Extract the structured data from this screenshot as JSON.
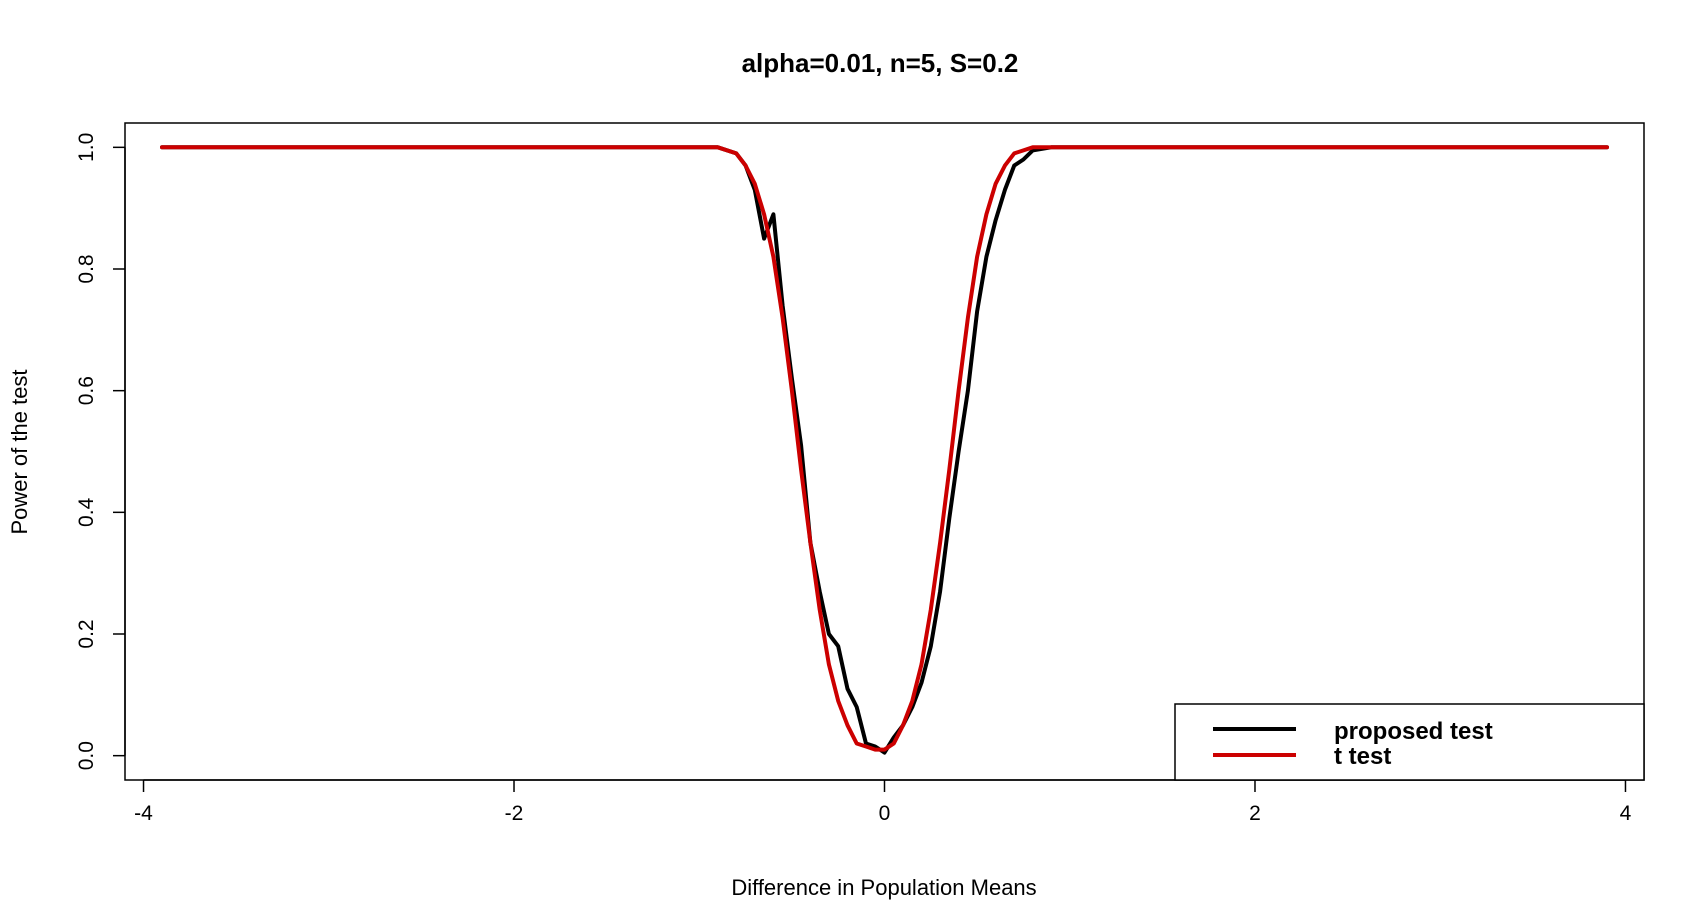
{
  "chart_data": {
    "type": "line",
    "title": "alpha=0.01, n=5, S=0.2",
    "xlabel": "Difference in Population Means",
    "ylabel": "Power of the test",
    "xlim": [
      -4.1,
      4.1
    ],
    "ylim": [
      -0.04,
      1.04
    ],
    "xticks": [
      -4,
      -2,
      0,
      2,
      4
    ],
    "xtick_labels": [
      "-4",
      "-2",
      "0",
      "2",
      "4"
    ],
    "yticks": [
      0.0,
      0.2,
      0.4,
      0.6,
      0.8,
      1.0
    ],
    "ytick_labels": [
      "0.0",
      "0.2",
      "0.4",
      "0.6",
      "0.8",
      "1.0"
    ],
    "grid": false,
    "legend_position": "bottom-right",
    "series": [
      {
        "name": "proposed test",
        "color": "#000000",
        "x": [
          -3.9,
          -1.0,
          -0.9,
          -0.8,
          -0.75,
          -0.7,
          -0.65,
          -0.6,
          -0.55,
          -0.5,
          -0.45,
          -0.4,
          -0.35,
          -0.3,
          -0.25,
          -0.2,
          -0.15,
          -0.1,
          -0.05,
          0.0,
          0.05,
          0.1,
          0.15,
          0.2,
          0.25,
          0.3,
          0.35,
          0.4,
          0.45,
          0.5,
          0.55,
          0.6,
          0.65,
          0.7,
          0.75,
          0.8,
          0.9,
          1.0,
          3.9
        ],
        "y": [
          1.0,
          1.0,
          1.0,
          0.99,
          0.97,
          0.93,
          0.85,
          0.89,
          0.74,
          0.62,
          0.51,
          0.35,
          0.27,
          0.2,
          0.18,
          0.11,
          0.08,
          0.02,
          0.015,
          0.005,
          0.03,
          0.05,
          0.08,
          0.12,
          0.18,
          0.27,
          0.39,
          0.5,
          0.6,
          0.73,
          0.82,
          0.88,
          0.93,
          0.97,
          0.98,
          0.995,
          1.0,
          1.0,
          1.0
        ]
      },
      {
        "name": "t test",
        "color": "#cc0000",
        "x": [
          -3.9,
          -1.0,
          -0.9,
          -0.8,
          -0.75,
          -0.7,
          -0.65,
          -0.6,
          -0.55,
          -0.5,
          -0.45,
          -0.4,
          -0.35,
          -0.3,
          -0.25,
          -0.2,
          -0.15,
          -0.1,
          -0.05,
          0.0,
          0.05,
          0.1,
          0.15,
          0.2,
          0.25,
          0.3,
          0.35,
          0.4,
          0.45,
          0.5,
          0.55,
          0.6,
          0.65,
          0.7,
          0.75,
          0.8,
          0.9,
          1.0,
          3.9
        ],
        "y": [
          1.0,
          1.0,
          1.0,
          0.99,
          0.97,
          0.94,
          0.89,
          0.82,
          0.72,
          0.6,
          0.47,
          0.35,
          0.24,
          0.15,
          0.09,
          0.05,
          0.02,
          0.015,
          0.01,
          0.01,
          0.02,
          0.05,
          0.09,
          0.15,
          0.24,
          0.35,
          0.47,
          0.6,
          0.72,
          0.82,
          0.89,
          0.94,
          0.97,
          0.99,
          0.995,
          1.0,
          1.0,
          1.0,
          1.0
        ]
      }
    ]
  }
}
